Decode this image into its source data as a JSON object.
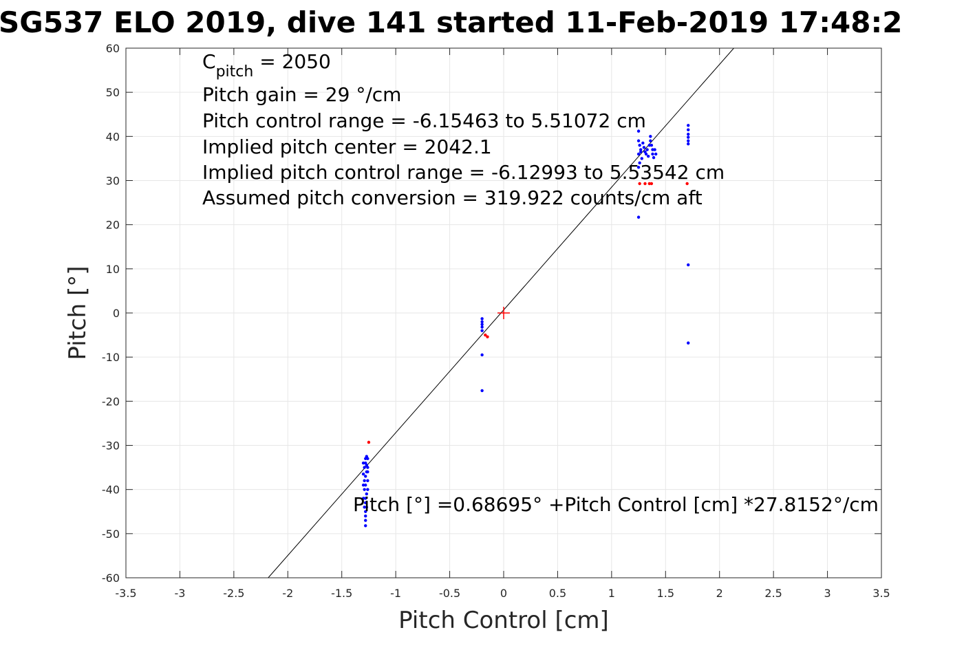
{
  "chart_data": {
    "type": "scatter",
    "title": "SG537 ELO 2019, dive 141 started 11-Feb-2019 17:48:2",
    "xlabel": "Pitch Control [cm]",
    "ylabel": "Pitch [°]",
    "xlim": [
      -3.5,
      3.5
    ],
    "ylim": [
      -60,
      60
    ],
    "xticks": [
      "-3.5",
      "-3",
      "-2.5",
      "-2",
      "-1.5",
      "-1",
      "-0.5",
      "0",
      "0.5",
      "1",
      "1.5",
      "2",
      "2.5",
      "3",
      "3.5"
    ],
    "yticks": [
      "60",
      "50",
      "40",
      "30",
      "20",
      "10",
      "0",
      "-10",
      "-20",
      "-30",
      "-40",
      "-50",
      "-60"
    ],
    "grid": true,
    "annotations": {
      "cpitch_main": "C",
      "cpitch_sub": "pitch",
      "cpitch_value": " = 2050",
      "lines": [
        "Pitch gain = 29 °/cm",
        "Pitch control range = -6.15463 to 5.51072 cm",
        "Implied pitch center = 2042.1",
        "Implied pitch control range = -6.12993 to 5.53542 cm",
        "Assumed pitch conversion = 319.922 counts/cm aft"
      ],
      "fit_equation": "Pitch [°] =0.68695° +Pitch Control [cm] *27.8152°/cm"
    },
    "fit": {
      "intercept": 0.68695,
      "slope": 27.8152,
      "color": "#000000"
    },
    "center_marker": {
      "x": 0,
      "y": 0,
      "color": "#ff0000"
    },
    "series": [
      {
        "color": "#0000ff",
        "points": [
          [
            -1.28,
            -33
          ],
          [
            -1.28,
            -34
          ],
          [
            -1.29,
            -35
          ],
          [
            -1.27,
            -36
          ],
          [
            -1.28,
            -37
          ],
          [
            -1.26,
            -38
          ],
          [
            -1.28,
            -39
          ],
          [
            -1.29,
            -40
          ],
          [
            -1.27,
            -41
          ],
          [
            -1.28,
            -42
          ],
          [
            -1.28,
            -43
          ],
          [
            -1.27,
            -44
          ],
          [
            -1.28,
            -45
          ],
          [
            -1.28,
            -46
          ],
          [
            -1.28,
            -47
          ],
          [
            -1.28,
            -48.2
          ],
          [
            -1.3,
            -34
          ],
          [
            -1.26,
            -33
          ],
          [
            -1.26,
            -35
          ],
          [
            -1.3,
            -36.5
          ],
          [
            -1.29,
            -38
          ],
          [
            -1.26,
            -40
          ],
          [
            -1.3,
            -42
          ],
          [
            -1.27,
            -32.5
          ],
          [
            -1.29,
            -44
          ],
          [
            -1.26,
            -36
          ],
          [
            -1.3,
            -39
          ],
          [
            -1.27,
            -34.5
          ],
          [
            -0.2,
            -1.3
          ],
          [
            -0.2,
            -2
          ],
          [
            -0.2,
            -2.6
          ],
          [
            -0.2,
            -3.2
          ],
          [
            -0.2,
            -4
          ],
          [
            -0.2,
            -9.5
          ],
          [
            -0.2,
            -17.6
          ],
          [
            1.25,
            41.2
          ],
          [
            1.25,
            39
          ],
          [
            1.26,
            38
          ],
          [
            1.27,
            37
          ],
          [
            1.25,
            36
          ],
          [
            1.28,
            35
          ],
          [
            1.26,
            34
          ],
          [
            1.25,
            33
          ],
          [
            1.29,
            38.5
          ],
          [
            1.3,
            37.5
          ],
          [
            1.31,
            36.5
          ],
          [
            1.32,
            36
          ],
          [
            1.33,
            37
          ],
          [
            1.35,
            38
          ],
          [
            1.36,
            40
          ],
          [
            1.36,
            39
          ],
          [
            1.37,
            38
          ],
          [
            1.38,
            37
          ],
          [
            1.38,
            36
          ],
          [
            1.39,
            35.2
          ],
          [
            1.4,
            37
          ],
          [
            1.41,
            36
          ],
          [
            1.34,
            35.5
          ],
          [
            1.27,
            36.5
          ],
          [
            1.25,
            21.7
          ],
          [
            1.71,
            42.5
          ],
          [
            1.71,
            41.5
          ],
          [
            1.71,
            40.5
          ],
          [
            1.71,
            39.8
          ],
          [
            1.71,
            39
          ],
          [
            1.71,
            38.3
          ],
          [
            1.71,
            10.9
          ],
          [
            1.71,
            -6.8
          ]
        ]
      },
      {
        "color": "#ff0000",
        "points": [
          [
            -1.25,
            -29.3
          ],
          [
            -0.17,
            -5
          ],
          [
            -0.15,
            -5.4
          ],
          [
            1.26,
            29.3
          ],
          [
            1.31,
            29.3
          ],
          [
            1.35,
            29.3
          ],
          [
            1.37,
            29.3
          ],
          [
            1.7,
            29.3
          ]
        ]
      }
    ]
  }
}
